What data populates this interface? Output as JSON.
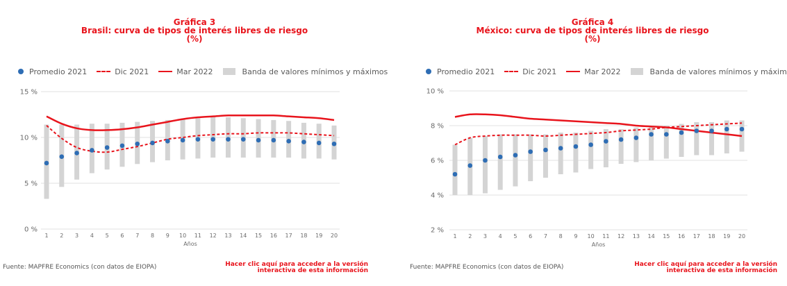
{
  "panels": [
    {
      "title": "Gráfica 3",
      "subtitle": "Brasil: curva de tipos de interés libres de riesgo",
      "unit": "(%)",
      "legend": {
        "promedio": "Promedio 2021",
        "dic": "Dic 2021",
        "mar": "Mar 2022",
        "banda": "Banda de valores mínimos y máximos"
      },
      "source": "Fuente: MAPFRE Economics (con datos de EIOPA)",
      "link_line1": "Hacer clic aquí para acceder a la versión",
      "link_line2": "interactiva de esta información"
    },
    {
      "title": "Gráfica 4",
      "subtitle": "México: curva de tipos de interés libres de riesgo",
      "unit": "(%)",
      "legend": {
        "promedio": "Promedio 2021",
        "dic": "Dic 2021",
        "mar": "Mar 2022",
        "banda": "Banda de valores mínimos y máximos"
      },
      "source": "Fuente: MAPFRE Economics (con datos de EIOPA)",
      "link_line1": "Hacer clic aquí para acceder a la versión",
      "link_line2": "interactiva de esta información"
    }
  ],
  "colors": {
    "accent": "#e8141c",
    "dots": "#2e6db4",
    "band": "#d4d4d4",
    "grid": "#e2e2e2",
    "text": "#6a6a6a"
  },
  "chart_data": [
    {
      "type": "line",
      "x": [
        1,
        2,
        3,
        4,
        5,
        6,
        7,
        8,
        9,
        10,
        11,
        12,
        13,
        14,
        15,
        16,
        17,
        18,
        19,
        20
      ],
      "xlabel": "Años",
      "ylim": [
        0,
        15
      ],
      "yticks": [
        0,
        5,
        10,
        15
      ],
      "ytick_labels": [
        "0 %",
        "5 %",
        "10 %",
        "15 %"
      ],
      "grid": "horizontal",
      "legend_position": "top-left",
      "series": [
        {
          "name": "Promedio 2021",
          "kind": "points",
          "values": [
            7.2,
            7.9,
            8.3,
            8.6,
            8.9,
            9.1,
            9.3,
            9.4,
            9.6,
            9.7,
            9.8,
            9.8,
            9.8,
            9.8,
            9.7,
            9.7,
            9.6,
            9.5,
            9.4,
            9.3
          ]
        },
        {
          "name": "Dic 2021",
          "kind": "dashed",
          "values": [
            11.3,
            9.9,
            8.9,
            8.5,
            8.4,
            8.7,
            9.0,
            9.4,
            9.8,
            10.0,
            10.2,
            10.3,
            10.4,
            10.4,
            10.5,
            10.5,
            10.5,
            10.4,
            10.3,
            10.2
          ]
        },
        {
          "name": "Mar 2022",
          "kind": "solid",
          "values": [
            12.3,
            11.5,
            11.0,
            10.8,
            10.8,
            10.9,
            11.1,
            11.4,
            11.7,
            12.0,
            12.2,
            12.3,
            12.4,
            12.4,
            12.4,
            12.4,
            12.3,
            12.2,
            12.1,
            11.9
          ]
        },
        {
          "name": "Banda de valores mínimos y máximos",
          "kind": "band",
          "low": [
            3.3,
            4.6,
            5.4,
            6.1,
            6.5,
            6.8,
            7.1,
            7.3,
            7.5,
            7.6,
            7.7,
            7.8,
            7.8,
            7.8,
            7.8,
            7.8,
            7.8,
            7.7,
            7.7,
            7.6
          ],
          "high": [
            11.4,
            11.4,
            11.4,
            11.5,
            11.5,
            11.6,
            11.7,
            11.8,
            11.9,
            12.0,
            12.1,
            12.2,
            12.2,
            12.1,
            12.0,
            11.9,
            11.8,
            11.6,
            11.5,
            11.3
          ]
        }
      ]
    },
    {
      "type": "line",
      "x": [
        1,
        2,
        3,
        4,
        5,
        6,
        7,
        8,
        9,
        10,
        11,
        12,
        13,
        14,
        15,
        16,
        17,
        18,
        19,
        20
      ],
      "xlabel": "Años",
      "ylim": [
        2,
        10
      ],
      "yticks": [
        2,
        4,
        6,
        8,
        10
      ],
      "ytick_labels": [
        "2 %",
        "4 %",
        "6 %",
        "8 %",
        "10 %"
      ],
      "grid": "horizontal",
      "legend_position": "top-left",
      "series": [
        {
          "name": "Promedio 2021",
          "kind": "points",
          "values": [
            5.2,
            5.7,
            6.0,
            6.2,
            6.3,
            6.5,
            6.6,
            6.7,
            6.8,
            6.9,
            7.1,
            7.2,
            7.3,
            7.5,
            7.5,
            7.6,
            7.7,
            7.7,
            7.8,
            7.8
          ]
        },
        {
          "name": "Dic 2021",
          "kind": "dashed",
          "values": [
            6.9,
            7.3,
            7.4,
            7.45,
            7.45,
            7.45,
            7.4,
            7.45,
            7.5,
            7.55,
            7.6,
            7.7,
            7.75,
            7.8,
            7.9,
            7.95,
            8.0,
            8.05,
            8.1,
            8.15
          ]
        },
        {
          "name": "Mar 2022",
          "kind": "solid",
          "values": [
            8.5,
            8.65,
            8.65,
            8.6,
            8.5,
            8.4,
            8.35,
            8.3,
            8.25,
            8.2,
            8.15,
            8.1,
            8.0,
            7.95,
            7.9,
            7.8,
            7.7,
            7.6,
            7.5,
            7.4
          ]
        },
        {
          "name": "Banda de valores mínimos y máximos",
          "kind": "band",
          "low": [
            4.0,
            4.0,
            4.1,
            4.3,
            4.5,
            4.8,
            5.0,
            5.2,
            5.3,
            5.5,
            5.6,
            5.8,
            5.9,
            6.0,
            6.1,
            6.2,
            6.3,
            6.3,
            6.4,
            6.5
          ],
          "high": [
            6.9,
            7.3,
            7.4,
            7.5,
            7.5,
            7.5,
            7.5,
            7.6,
            7.6,
            7.7,
            7.8,
            7.8,
            7.9,
            8.0,
            8.0,
            8.1,
            8.2,
            8.2,
            8.3,
            8.3
          ]
        }
      ]
    }
  ]
}
